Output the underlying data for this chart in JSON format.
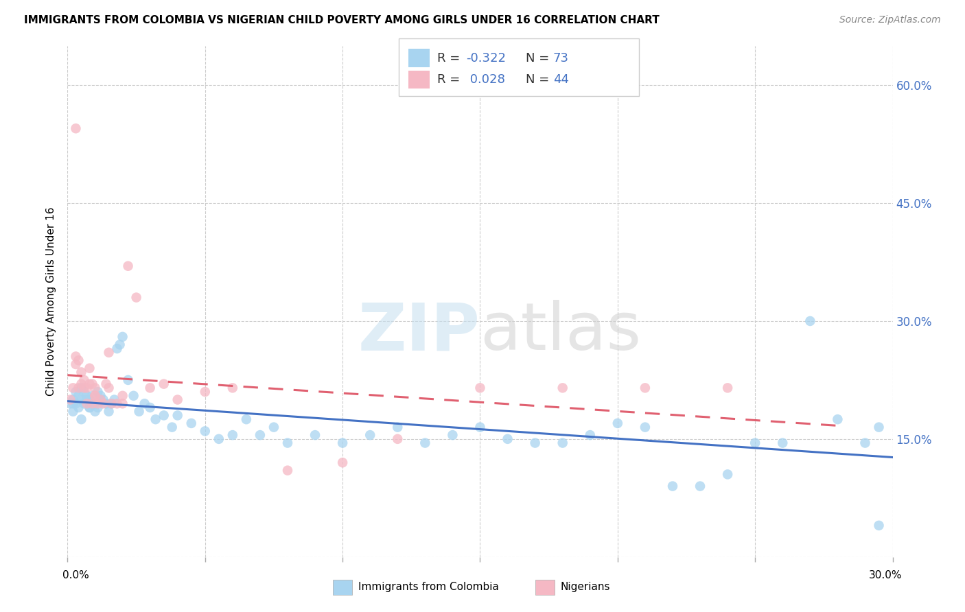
{
  "title": "IMMIGRANTS FROM COLOMBIA VS NIGERIAN CHILD POVERTY AMONG GIRLS UNDER 16 CORRELATION CHART",
  "source": "Source: ZipAtlas.com",
  "ylabel": "Child Poverty Among Girls Under 16",
  "yticks": [
    0.0,
    0.15,
    0.3,
    0.45,
    0.6
  ],
  "ytick_labels": [
    "",
    "15.0%",
    "30.0%",
    "45.0%",
    "60.0%"
  ],
  "xlim": [
    0.0,
    0.3
  ],
  "ylim": [
    0.0,
    0.65
  ],
  "xtick_labels": [
    "0.0%",
    "",
    "",
    "",
    "",
    "",
    "30.0%"
  ],
  "legend_r_colombia": "-0.322",
  "legend_n_colombia": "73",
  "legend_r_nigeria": "0.028",
  "legend_n_nigeria": "44",
  "color_colombia": "#a8d4f0",
  "color_nigeria": "#f5b8c4",
  "color_line_colombia": "#4472c4",
  "color_line_nigeria": "#e06070",
  "colombia_x": [
    0.001,
    0.002,
    0.002,
    0.003,
    0.003,
    0.004,
    0.004,
    0.005,
    0.005,
    0.006,
    0.006,
    0.007,
    0.007,
    0.008,
    0.008,
    0.009,
    0.009,
    0.01,
    0.01,
    0.011,
    0.011,
    0.012,
    0.013,
    0.014,
    0.015,
    0.016,
    0.017,
    0.018,
    0.019,
    0.02,
    0.022,
    0.024,
    0.026,
    0.028,
    0.03,
    0.032,
    0.035,
    0.038,
    0.04,
    0.045,
    0.05,
    0.055,
    0.06,
    0.065,
    0.07,
    0.075,
    0.08,
    0.09,
    0.1,
    0.11,
    0.12,
    0.13,
    0.14,
    0.15,
    0.16,
    0.17,
    0.18,
    0.19,
    0.2,
    0.21,
    0.22,
    0.23,
    0.24,
    0.25,
    0.26,
    0.27,
    0.28,
    0.29,
    0.295,
    0.002,
    0.005,
    0.008,
    0.295
  ],
  "colombia_y": [
    0.195,
    0.2,
    0.185,
    0.195,
    0.21,
    0.19,
    0.205,
    0.2,
    0.215,
    0.195,
    0.21,
    0.2,
    0.205,
    0.19,
    0.2,
    0.195,
    0.205,
    0.185,
    0.195,
    0.19,
    0.21,
    0.205,
    0.2,
    0.195,
    0.185,
    0.195,
    0.2,
    0.265,
    0.27,
    0.28,
    0.225,
    0.205,
    0.185,
    0.195,
    0.19,
    0.175,
    0.18,
    0.165,
    0.18,
    0.17,
    0.16,
    0.15,
    0.155,
    0.175,
    0.155,
    0.165,
    0.145,
    0.155,
    0.145,
    0.155,
    0.165,
    0.145,
    0.155,
    0.165,
    0.15,
    0.145,
    0.145,
    0.155,
    0.17,
    0.165,
    0.09,
    0.09,
    0.105,
    0.145,
    0.145,
    0.3,
    0.175,
    0.145,
    0.165,
    0.195,
    0.175,
    0.19,
    0.04
  ],
  "nigeria_x": [
    0.001,
    0.002,
    0.003,
    0.003,
    0.004,
    0.004,
    0.005,
    0.005,
    0.006,
    0.006,
    0.007,
    0.007,
    0.008,
    0.008,
    0.009,
    0.009,
    0.01,
    0.01,
    0.011,
    0.012,
    0.013,
    0.014,
    0.015,
    0.016,
    0.018,
    0.02,
    0.022,
    0.025,
    0.03,
    0.035,
    0.04,
    0.05,
    0.06,
    0.08,
    0.1,
    0.12,
    0.15,
    0.18,
    0.21,
    0.24,
    0.003,
    0.01,
    0.015,
    0.02
  ],
  "nigeria_y": [
    0.2,
    0.215,
    0.245,
    0.255,
    0.25,
    0.215,
    0.22,
    0.235,
    0.215,
    0.225,
    0.195,
    0.215,
    0.24,
    0.22,
    0.22,
    0.195,
    0.215,
    0.205,
    0.195,
    0.2,
    0.195,
    0.22,
    0.215,
    0.195,
    0.195,
    0.205,
    0.37,
    0.33,
    0.215,
    0.22,
    0.2,
    0.21,
    0.215,
    0.11,
    0.12,
    0.15,
    0.215,
    0.215,
    0.215,
    0.215,
    0.545,
    0.205,
    0.26,
    0.195
  ]
}
